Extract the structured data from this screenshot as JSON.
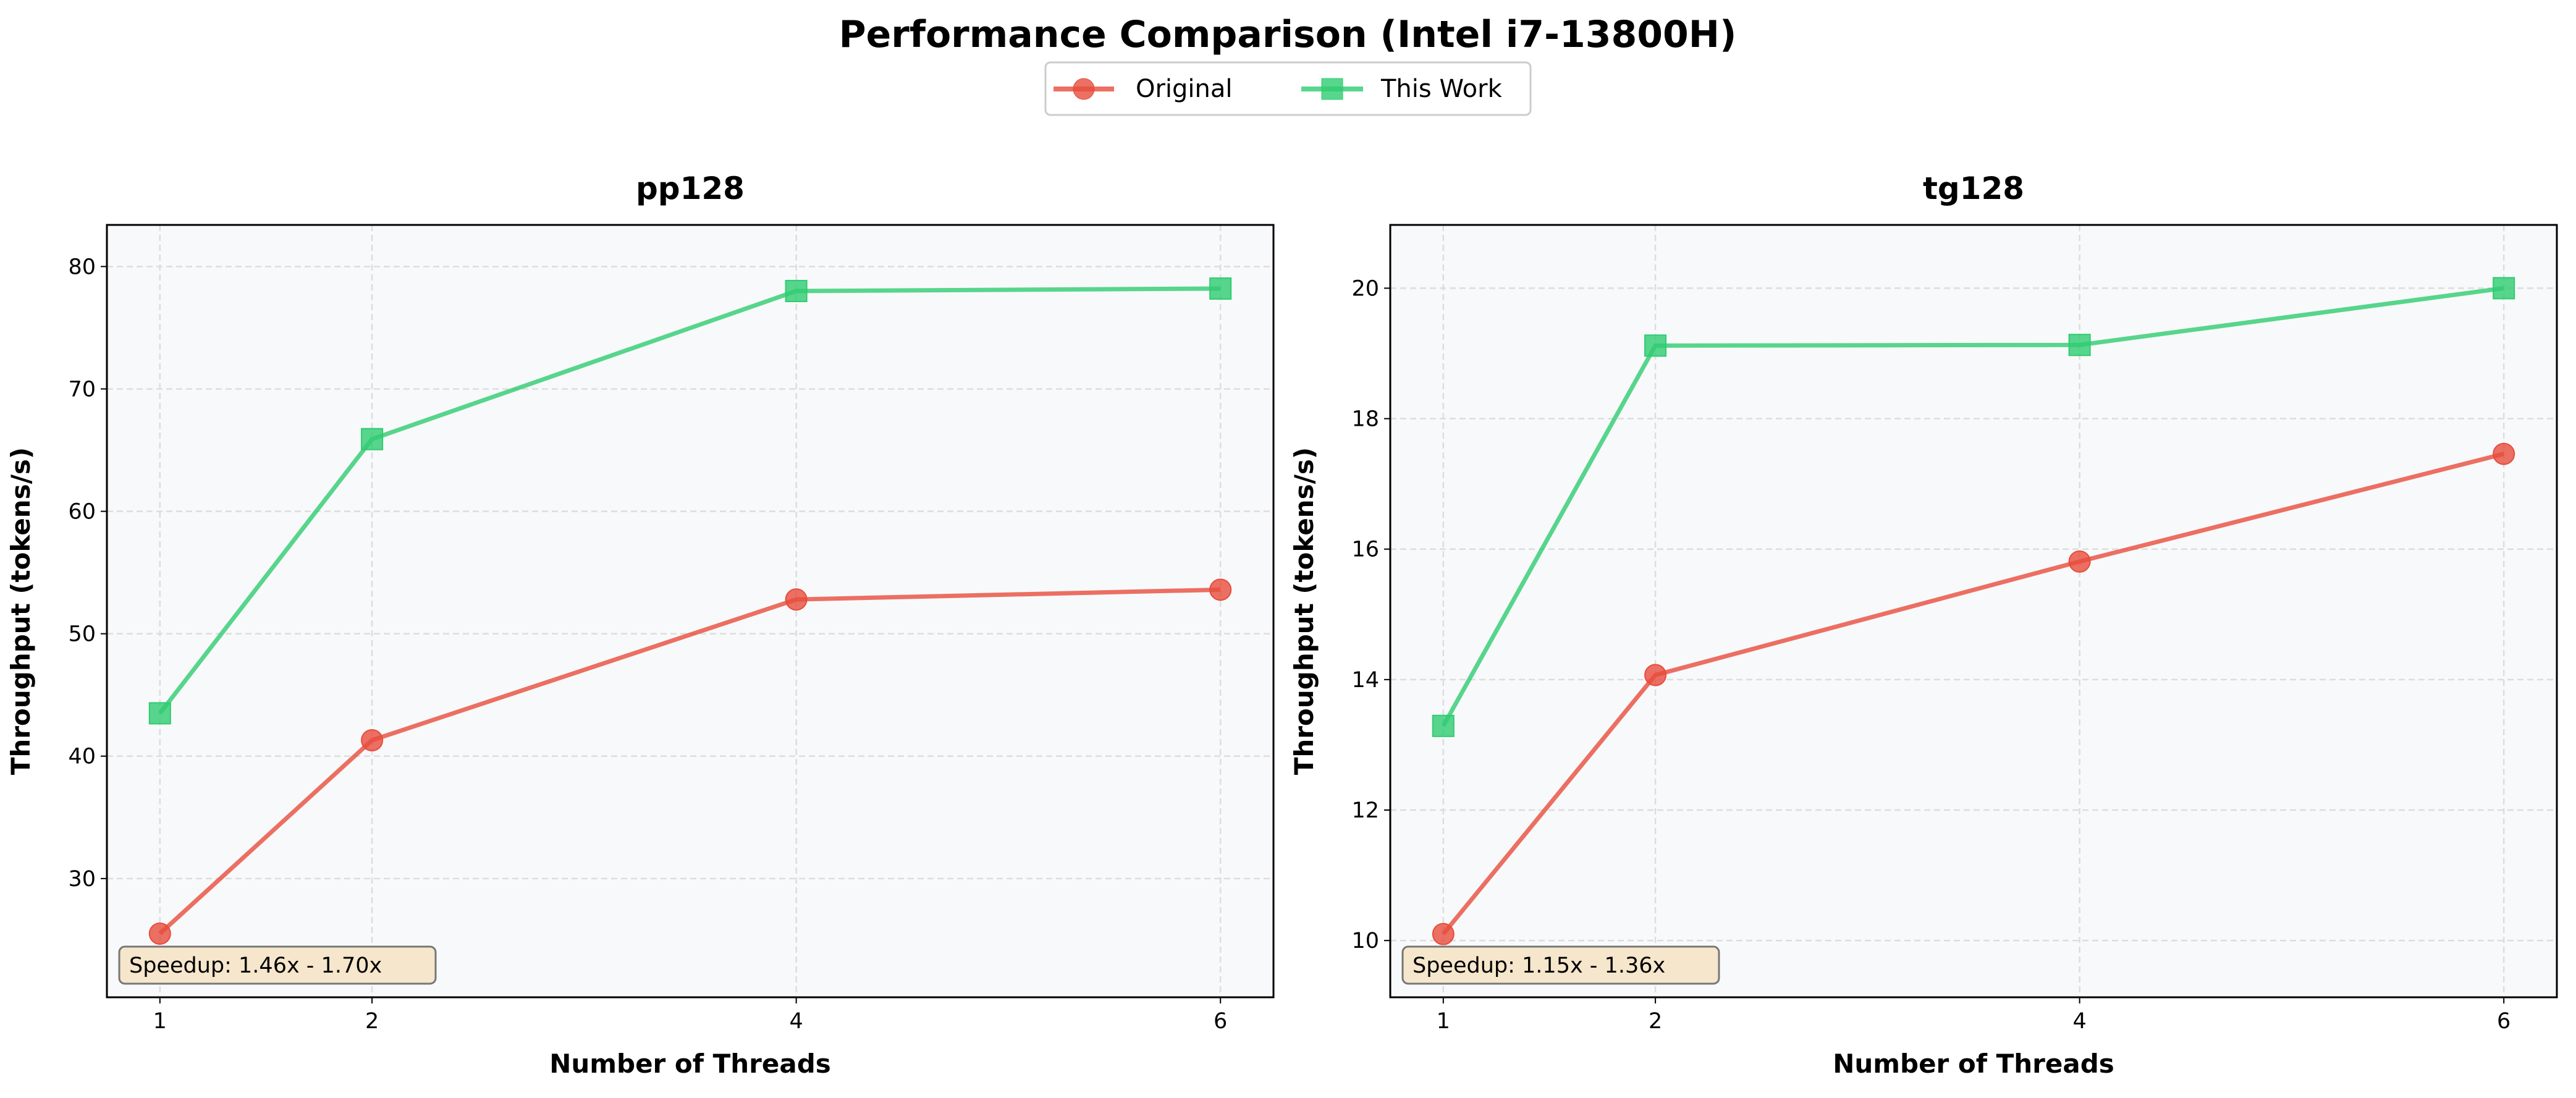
{
  "title": "Performance Comparison (Intel i7-13800H)",
  "legend": {
    "placement": "top-center",
    "entries": [
      {
        "name": "Original",
        "color": "#e74c3c",
        "marker": "circle"
      },
      {
        "name": "This Work",
        "color": "#2ecc71",
        "marker": "square"
      }
    ]
  },
  "chart_data": [
    {
      "type": "line",
      "title": "pp128",
      "xlabel": "Number of Threads",
      "ylabel": "Throughput (tokens/s)",
      "x": [
        1,
        2,
        4,
        6
      ],
      "xticks": [
        1,
        2,
        4,
        6
      ],
      "xlim": [
        0.75,
        6.25
      ],
      "yticks": [
        30,
        40,
        50,
        60,
        70,
        80
      ],
      "ylim": [
        20.3,
        83.4
      ],
      "grid": true,
      "series": [
        {
          "name": "Original",
          "values": [
            25.5,
            41.3,
            52.8,
            53.6
          ]
        },
        {
          "name": "This Work",
          "values": [
            43.5,
            65.9,
            78.0,
            78.2
          ]
        }
      ],
      "annotation": "Speedup: 1.46x - 1.70x"
    },
    {
      "type": "line",
      "title": "tg128",
      "xlabel": "Number of Threads",
      "ylabel": "Throughput (tokens/s)",
      "x": [
        1,
        2,
        4,
        6
      ],
      "xticks": [
        1,
        2,
        4,
        6
      ],
      "xlim": [
        0.75,
        6.25
      ],
      "yticks": [
        10,
        12,
        14,
        16,
        18,
        20
      ],
      "ylim": [
        9.13,
        20.97
      ],
      "grid": true,
      "series": [
        {
          "name": "Original",
          "values": [
            10.1,
            14.07,
            15.81,
            17.46
          ]
        },
        {
          "name": "This Work",
          "values": [
            13.29,
            19.12,
            19.13,
            20.0
          ]
        }
      ],
      "annotation": "Speedup: 1.15x - 1.36x"
    }
  ],
  "colors": {
    "axes_bg": "#f8f9fa",
    "grid": "#dddddd",
    "annotation_bg": "#f5e6cc"
  }
}
